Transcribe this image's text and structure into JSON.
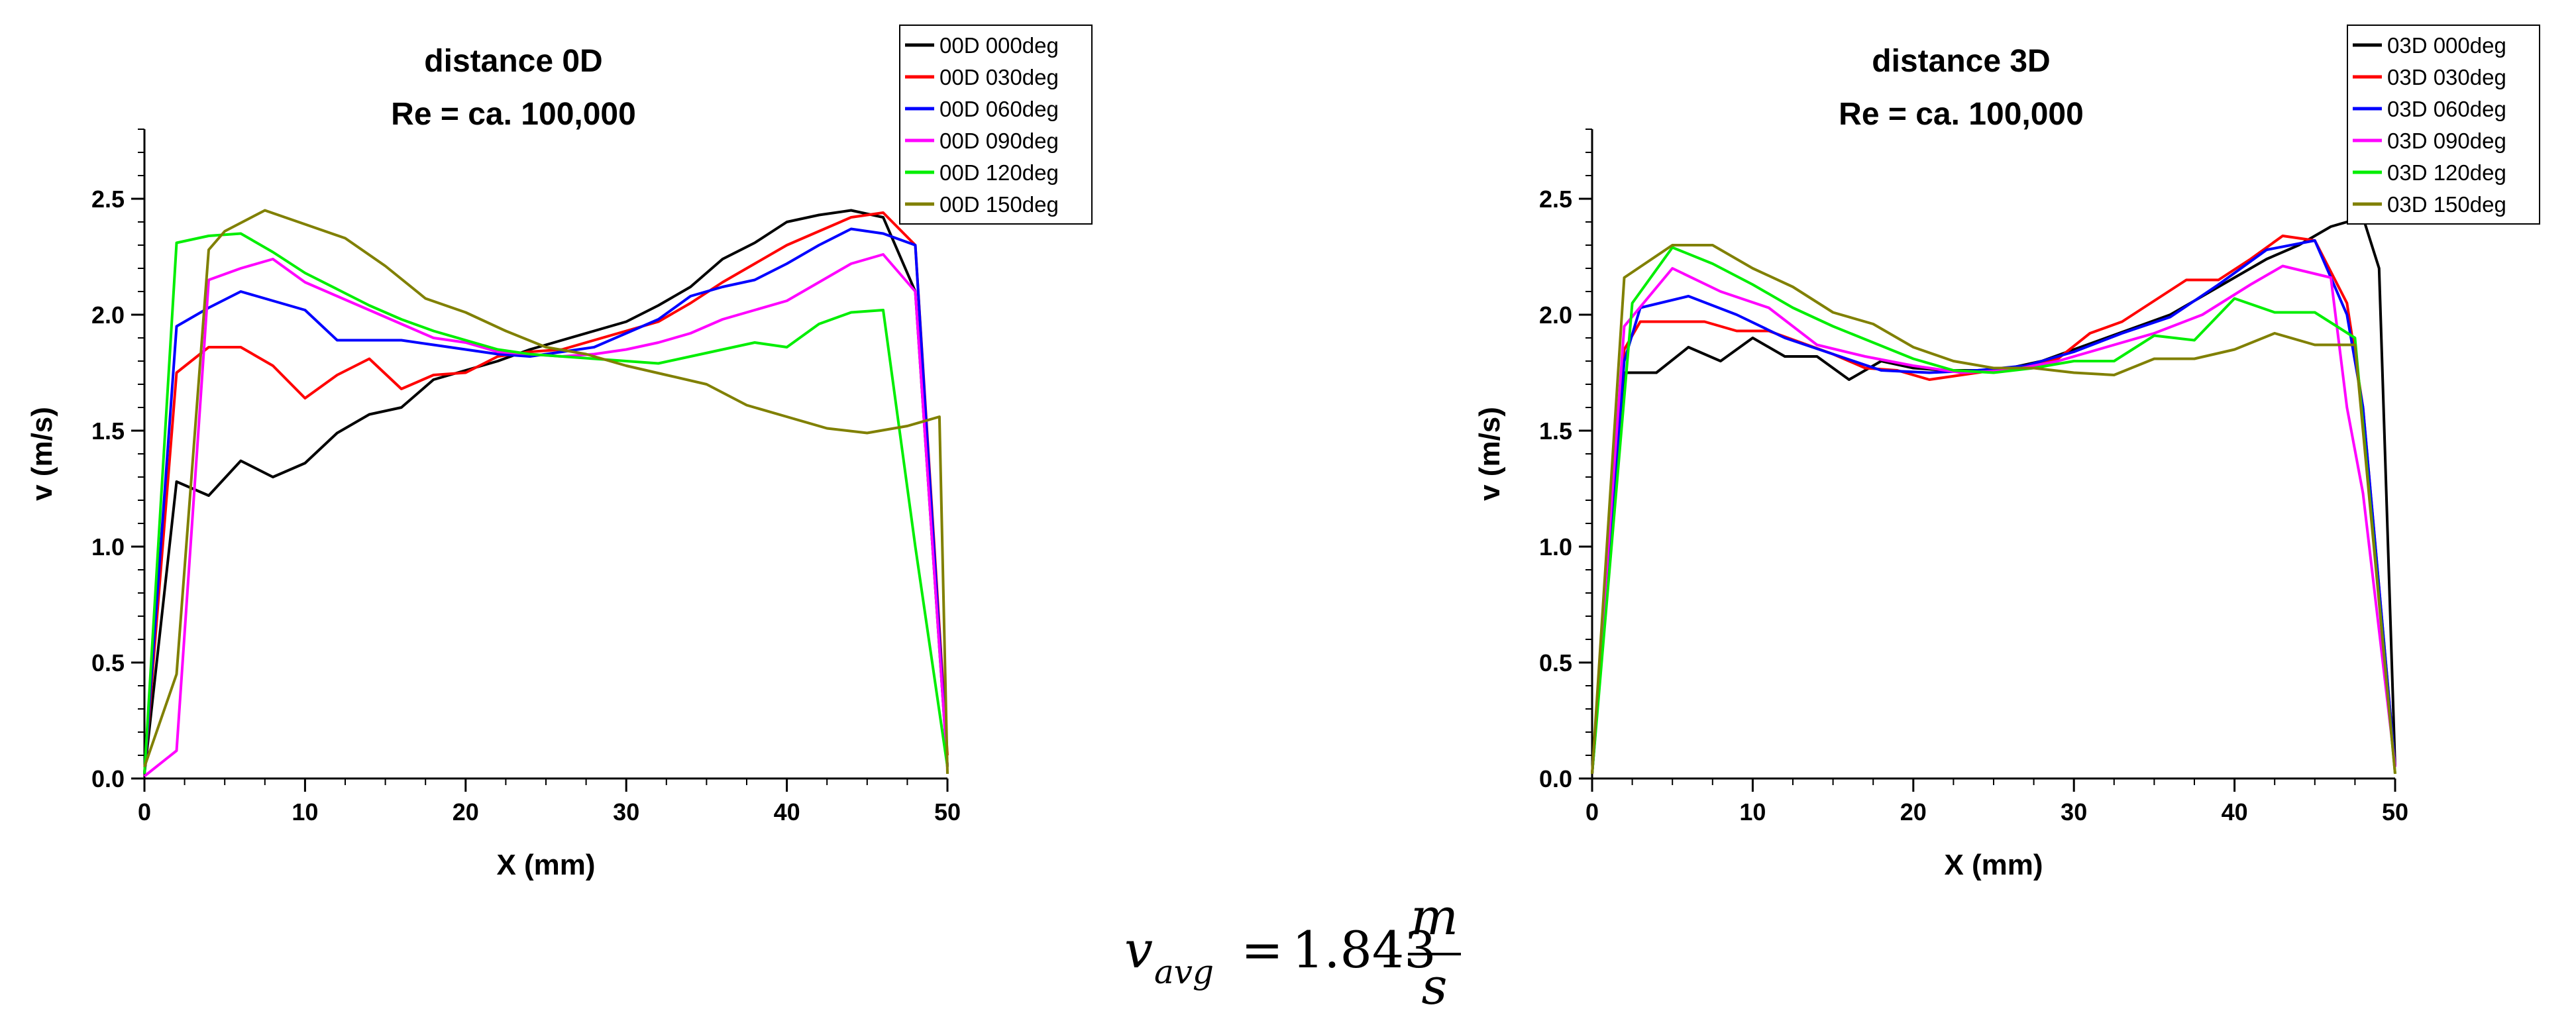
{
  "chart_data": [
    {
      "type": "line",
      "title": "distance 0D",
      "subtitle": "Re = ca. 100,000",
      "xlabel": "X (mm)",
      "ylabel": "v (m/s)",
      "xlim": [
        0,
        50
      ],
      "ylim": [
        0,
        2.8
      ],
      "xticks": [
        0,
        10,
        20,
        30,
        40,
        50
      ],
      "xtick_labels": [
        "0",
        "10",
        "20",
        "30",
        "40",
        "50"
      ],
      "yticks": [
        0,
        0.5,
        1.0,
        1.5,
        2.0,
        2.5
      ],
      "ytick_labels": [
        "0.0",
        "0.5",
        "1.0",
        "1.5",
        "2.0",
        "2.5"
      ],
      "legend_position": "top-right",
      "series": [
        {
          "name": "00D 000deg",
          "color": "#000000",
          "x": [
            0,
            2,
            4,
            6,
            8,
            10,
            12,
            14,
            16,
            18,
            20,
            22,
            24,
            26,
            28,
            30,
            32,
            34,
            36,
            38,
            40,
            42,
            44,
            46,
            48,
            50
          ],
          "y": [
            0.02,
            1.28,
            1.22,
            1.37,
            1.3,
            1.36,
            1.49,
            1.57,
            1.6,
            1.72,
            1.76,
            1.8,
            1.85,
            1.89,
            1.93,
            1.97,
            2.04,
            2.12,
            2.24,
            2.31,
            2.4,
            2.43,
            2.45,
            2.42,
            2.1,
            0.05
          ]
        },
        {
          "name": "00D 030deg",
          "color": "#ff0000",
          "x": [
            0,
            2,
            4,
            6,
            8,
            10,
            12,
            14,
            16,
            18,
            20,
            22,
            24,
            26,
            28,
            30,
            32,
            34,
            36,
            38,
            40,
            42,
            44,
            46,
            48,
            50
          ],
          "y": [
            0.02,
            1.75,
            1.86,
            1.86,
            1.78,
            1.64,
            1.74,
            1.81,
            1.68,
            1.74,
            1.75,
            1.82,
            1.84,
            1.85,
            1.89,
            1.93,
            1.97,
            2.05,
            2.14,
            2.22,
            2.3,
            2.36,
            2.42,
            2.44,
            2.3,
            0.1
          ]
        },
        {
          "name": "00D 060deg",
          "color": "#0000ff",
          "x": [
            0,
            2,
            4,
            6,
            8,
            10,
            12,
            14,
            16,
            18,
            20,
            22,
            24,
            26,
            28,
            30,
            32,
            34,
            36,
            38,
            40,
            42,
            44,
            46,
            48,
            50
          ],
          "y": [
            0.02,
            1.95,
            2.03,
            2.1,
            2.06,
            2.02,
            1.89,
            1.89,
            1.89,
            1.87,
            1.85,
            1.83,
            1.82,
            1.84,
            1.86,
            1.92,
            1.98,
            2.08,
            2.12,
            2.15,
            2.22,
            2.3,
            2.37,
            2.35,
            2.3,
            0.05
          ]
        },
        {
          "name": "00D 090deg",
          "color": "#ff00ff",
          "x": [
            0,
            2,
            4,
            6,
            8,
            10,
            12,
            14,
            16,
            18,
            20,
            22,
            24,
            26,
            28,
            30,
            32,
            34,
            36,
            38,
            40,
            42,
            44,
            46,
            48,
            50
          ],
          "y": [
            0.01,
            0.12,
            2.15,
            2.2,
            2.24,
            2.14,
            2.08,
            2.02,
            1.96,
            1.9,
            1.88,
            1.84,
            1.83,
            1.82,
            1.83,
            1.85,
            1.88,
            1.92,
            1.98,
            2.02,
            2.06,
            2.14,
            2.22,
            2.26,
            2.1,
            0.05
          ]
        },
        {
          "name": "00D 120deg",
          "color": "#00ee00",
          "x": [
            0,
            2,
            4,
            6,
            8,
            10,
            12,
            14,
            16,
            18,
            20,
            22,
            24,
            26,
            28,
            30,
            32,
            34,
            36,
            38,
            40,
            42,
            44,
            46,
            48,
            50
          ],
          "y": [
            0.02,
            2.31,
            2.34,
            2.35,
            2.27,
            2.18,
            2.11,
            2.04,
            1.98,
            1.93,
            1.89,
            1.85,
            1.83,
            1.82,
            1.81,
            1.8,
            1.79,
            1.82,
            1.85,
            1.88,
            1.86,
            1.96,
            2.01,
            2.02,
            1.0,
            0.05
          ]
        },
        {
          "name": "00D 150deg",
          "color": "#808000",
          "x": [
            0,
            2,
            4,
            5,
            7.5,
            10,
            12.5,
            15,
            17.5,
            20,
            22.5,
            25,
            27.5,
            30,
            32.5,
            35,
            37.5,
            40,
            42.5,
            45,
            47.5,
            49.5,
            50
          ],
          "y": [
            0.05,
            0.45,
            2.28,
            2.36,
            2.45,
            2.39,
            2.33,
            2.21,
            2.07,
            2.01,
            1.93,
            1.86,
            1.83,
            1.78,
            1.74,
            1.7,
            1.61,
            1.56,
            1.51,
            1.49,
            1.52,
            1.56,
            0.02
          ]
        }
      ]
    },
    {
      "type": "line",
      "title": "distance 3D",
      "subtitle": "Re = ca. 100,000",
      "xlabel": "X (mm)",
      "ylabel": "v (m/s)",
      "xlim": [
        0,
        50
      ],
      "ylim": [
        0,
        2.8
      ],
      "xticks": [
        0,
        10,
        20,
        30,
        40,
        50
      ],
      "xtick_labels": [
        "0",
        "10",
        "20",
        "30",
        "40",
        "50"
      ],
      "yticks": [
        0,
        0.5,
        1.0,
        1.5,
        2.0,
        2.5
      ],
      "ytick_labels": [
        "0.0",
        "0.5",
        "1.0",
        "1.5",
        "2.0",
        "2.5"
      ],
      "legend_position": "top-right",
      "series": [
        {
          "name": "03D 000deg",
          "color": "#000000",
          "x": [
            0,
            2,
            4,
            6,
            8,
            10,
            12,
            14,
            16,
            18,
            20,
            22,
            24,
            26,
            28,
            30,
            32,
            34,
            36,
            38,
            40,
            42,
            44,
            46,
            48,
            49,
            50
          ],
          "y": [
            0.02,
            1.75,
            1.75,
            1.86,
            1.8,
            1.9,
            1.82,
            1.82,
            1.72,
            1.8,
            1.77,
            1.76,
            1.76,
            1.77,
            1.8,
            1.85,
            1.9,
            1.95,
            2.0,
            2.08,
            2.16,
            2.24,
            2.3,
            2.38,
            2.42,
            2.2,
            0.05
          ]
        },
        {
          "name": "03D 030deg",
          "color": "#ff0000",
          "x": [
            0,
            2,
            3,
            5,
            7,
            9,
            11,
            13,
            15,
            17,
            19,
            21,
            23,
            25,
            27,
            29,
            31,
            33,
            35,
            37,
            39,
            41,
            43,
            45,
            47,
            48,
            50
          ],
          "y": [
            0.02,
            1.85,
            1.97,
            1.97,
            1.97,
            1.93,
            1.93,
            1.88,
            1.83,
            1.77,
            1.76,
            1.72,
            1.74,
            1.76,
            1.77,
            1.81,
            1.92,
            1.97,
            2.06,
            2.15,
            2.15,
            2.24,
            2.34,
            2.32,
            2.05,
            1.6,
            0.05
          ]
        },
        {
          "name": "03D 060deg",
          "color": "#0000ff",
          "x": [
            0,
            2,
            3,
            6,
            9,
            12,
            15,
            18,
            21,
            24,
            27,
            30,
            33,
            36,
            39,
            42,
            45,
            47,
            48,
            50
          ],
          "y": [
            0.02,
            1.8,
            2.03,
            2.08,
            2.0,
            1.9,
            1.83,
            1.76,
            1.75,
            1.76,
            1.78,
            1.84,
            1.92,
            1.99,
            2.13,
            2.28,
            2.32,
            2.0,
            1.6,
            0.05
          ]
        },
        {
          "name": "03D 090deg",
          "color": "#ff00ff",
          "x": [
            0,
            2,
            5,
            8,
            11,
            14,
            17,
            20,
            23,
            26,
            29,
            32,
            35,
            38,
            41,
            43,
            46,
            47,
            48,
            50
          ],
          "y": [
            0.02,
            1.95,
            2.2,
            2.1,
            2.03,
            1.87,
            1.82,
            1.78,
            1.75,
            1.76,
            1.8,
            1.86,
            1.92,
            2.0,
            2.13,
            2.21,
            2.16,
            1.6,
            1.23,
            0.05
          ]
        },
        {
          "name": "03D 120deg",
          "color": "#00ee00",
          "x": [
            0,
            2.5,
            5,
            7.5,
            10,
            12.5,
            15,
            17.5,
            20,
            22.5,
            25,
            27.5,
            30,
            32.5,
            35,
            37.5,
            40,
            42.5,
            45,
            47.5,
            50
          ],
          "y": [
            0.02,
            2.05,
            2.29,
            2.22,
            2.13,
            2.03,
            1.95,
            1.88,
            1.81,
            1.76,
            1.75,
            1.77,
            1.8,
            1.8,
            1.91,
            1.89,
            2.07,
            2.01,
            2.01,
            1.9,
            0.02
          ]
        },
        {
          "name": "03D 150deg",
          "color": "#808000",
          "x": [
            0,
            2,
            5,
            7.5,
            10,
            12.5,
            15,
            17.5,
            20,
            22.5,
            25,
            27.5,
            30,
            32.5,
            35,
            37.5,
            40,
            42.5,
            45,
            46,
            47.5,
            50
          ],
          "y": [
            0.02,
            2.16,
            2.3,
            2.3,
            2.2,
            2.12,
            2.01,
            1.96,
            1.86,
            1.8,
            1.77,
            1.77,
            1.75,
            1.74,
            1.81,
            1.81,
            1.85,
            1.92,
            1.87,
            1.87,
            1.87,
            0.02
          ]
        }
      ]
    }
  ],
  "equation": {
    "var": "v",
    "sub": "avg",
    "eq": "=",
    "value": "1.843",
    "num": "m",
    "den": "s"
  }
}
